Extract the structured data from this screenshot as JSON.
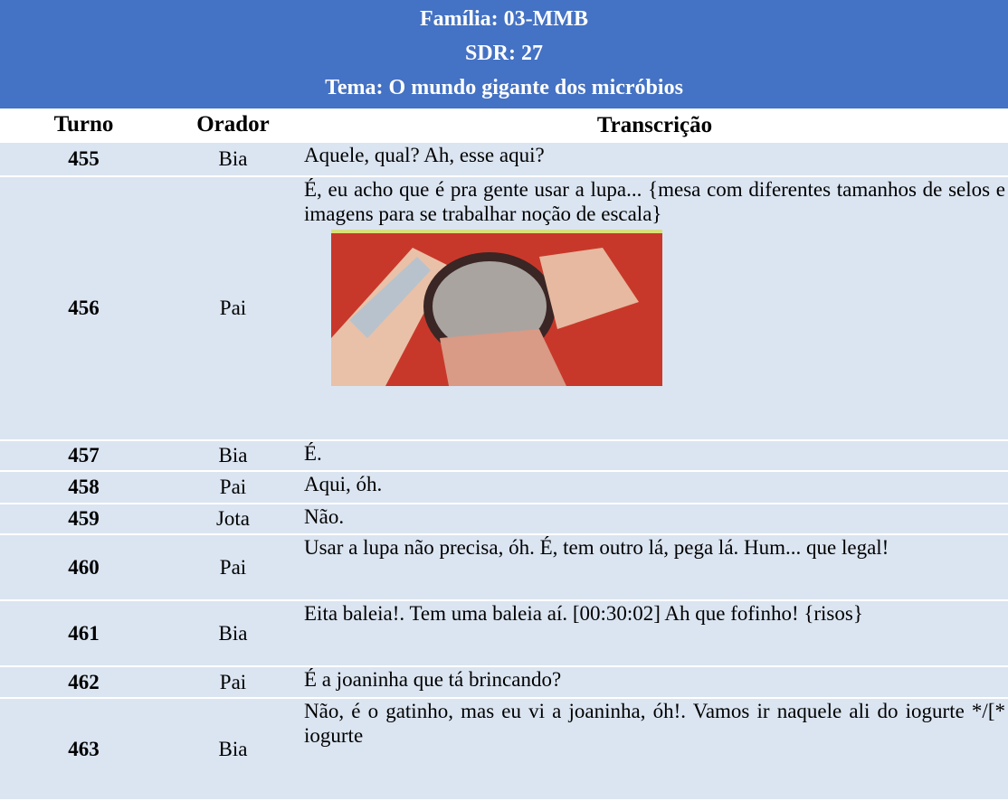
{
  "header": {
    "lines": [
      "Família: 03-MMB",
      "SDR: 27",
      "Tema: O mundo gigante dos micróbios"
    ]
  },
  "table": {
    "columns": [
      "Turno",
      "Orador",
      "Transcrição"
    ],
    "rows": [
      [
        "455",
        "Bia",
        "Aquele, qual? Ah, esse aqui?"
      ],
      [
        "456",
        "Pai",
        "É, eu acho que é pra gente usar a lupa... {mesa com diferentes tamanhos de selos e imagens para se trabalhar noção de escala}"
      ],
      [
        "457",
        "Bia",
        "É."
      ],
      [
        "458",
        "Pai",
        "Aqui, óh."
      ],
      [
        "459",
        "Jota",
        "Não."
      ],
      [
        "460",
        "Pai",
        "Usar a lupa não precisa, óh. É, tem outro lá, pega lá. Hum... que legal!"
      ],
      [
        "461",
        "Bia",
        "Eita baleia!. Tem uma baleia aí. [00:30:02] Ah que fofinho! {risos}"
      ],
      [
        "462",
        "Pai",
        "É a joaninha que tá brincando?"
      ],
      [
        "463",
        "Bia",
        "Não, é o gatinho, mas eu vi a joaninha, óh!. Vamos ir naquele ali do iogurte */[* iogurte"
      ]
    ]
  }
}
